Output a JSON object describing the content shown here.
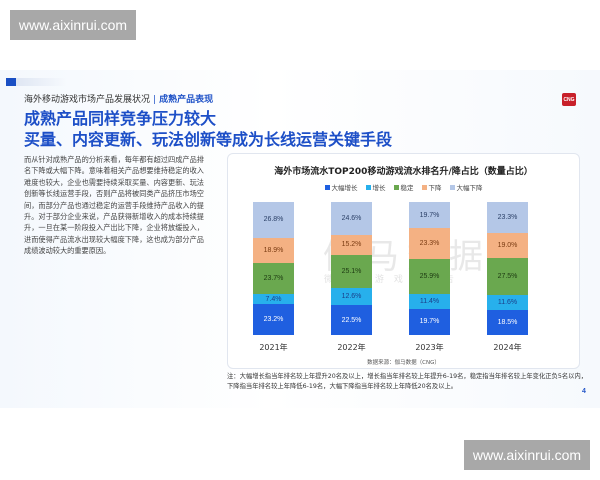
{
  "watermark": {
    "top": "www.aixinrui.com",
    "bottom": "www.aixinrui.com"
  },
  "header": {
    "section": "海外移动游戏市场产品发展状况",
    "separator": "|",
    "section_current": "成熟产品表现",
    "logo_text": "CNG",
    "headline_line1": "成熟产品同样竞争压力较大",
    "headline_line2": "买量、内容更新、玩法创新等成为长线运营关键手段"
  },
  "body": {
    "paragraph": "而从针对成熟产品的分析来看，每年都有超过四成产品排名下降或大幅下降。意味着相关产品想要维持稳定的收入难度也较大，企业也需要持续采取买量、内容更新、玩法创新等长线运营手段，否则产品将被同类产品挤压市场空间，而部分产品也通过稳定的运营手段维持产品收入的提升。对于部分企业来说，产品获得新增收入的成本持续提升，一旦在某一阶段投入产出比下降，企业将放缓投入，进而使得产品流水出现较大幅度下降，这也成为部分产品成绩波动较大的重要原因。"
  },
  "chart_watermark": {
    "main": "伽马数据",
    "sub": "微信 游戏 广告"
  },
  "chart_data": {
    "type": "bar",
    "stacked": true,
    "percent": true,
    "title": "海外市场流水TOP200移动游戏流水排名升/降占比（数量占比）",
    "categories": [
      "2021年",
      "2022年",
      "2023年",
      "2024年"
    ],
    "series": [
      {
        "name": "大幅增长",
        "color": "#1f5fe0",
        "text_color": "#ffffff",
        "values": [
          23.2,
          22.5,
          19.7,
          18.5
        ],
        "labels": [
          "23.2%",
          "22.5%",
          "19.7%",
          "18.5%"
        ]
      },
      {
        "name": "增长",
        "color": "#27b0ec",
        "text_color": "#1b3f8a",
        "values": [
          7.4,
          12.6,
          11.4,
          11.6
        ],
        "labels": [
          "7.4%",
          "12.6%",
          "11.4%",
          "11.6%"
        ]
      },
      {
        "name": "稳定",
        "color": "#6aa84f",
        "text_color": "#1d3a12",
        "values": [
          23.7,
          25.1,
          25.9,
          27.5
        ],
        "labels": [
          "23.7%",
          "25.1%",
          "25.9%",
          "27.5%"
        ]
      },
      {
        "name": "下降",
        "color": "#f4b183",
        "text_color": "#7a3b12",
        "values": [
          18.9,
          15.2,
          23.3,
          19.0
        ],
        "labels": [
          "18.9%",
          "15.2%",
          "23.3%",
          "19.0%"
        ]
      },
      {
        "name": "大幅下降",
        "color": "#b4c7e7",
        "text_color": "#2a3f66",
        "values": [
          26.8,
          24.6,
          19.7,
          23.3
        ],
        "labels": [
          "26.8%",
          "24.6%",
          "19.7%",
          "23.3%"
        ]
      }
    ],
    "legend_position": "top",
    "grid": false,
    "ylim": [
      0,
      100
    ],
    "source": "数据来源：伽马数据（CNG）"
  },
  "note": {
    "line1": "注：大幅增长指当年排名较上年提升20名及以上，增长指当年排名较上年提升6-19名，稳定指当年排名较上年变化正负5名以内，",
    "line2": "下降指当年排名较上年降低6-19名，大幅下降指当年排名较上年降低20名及以上。"
  },
  "page_number": "4"
}
